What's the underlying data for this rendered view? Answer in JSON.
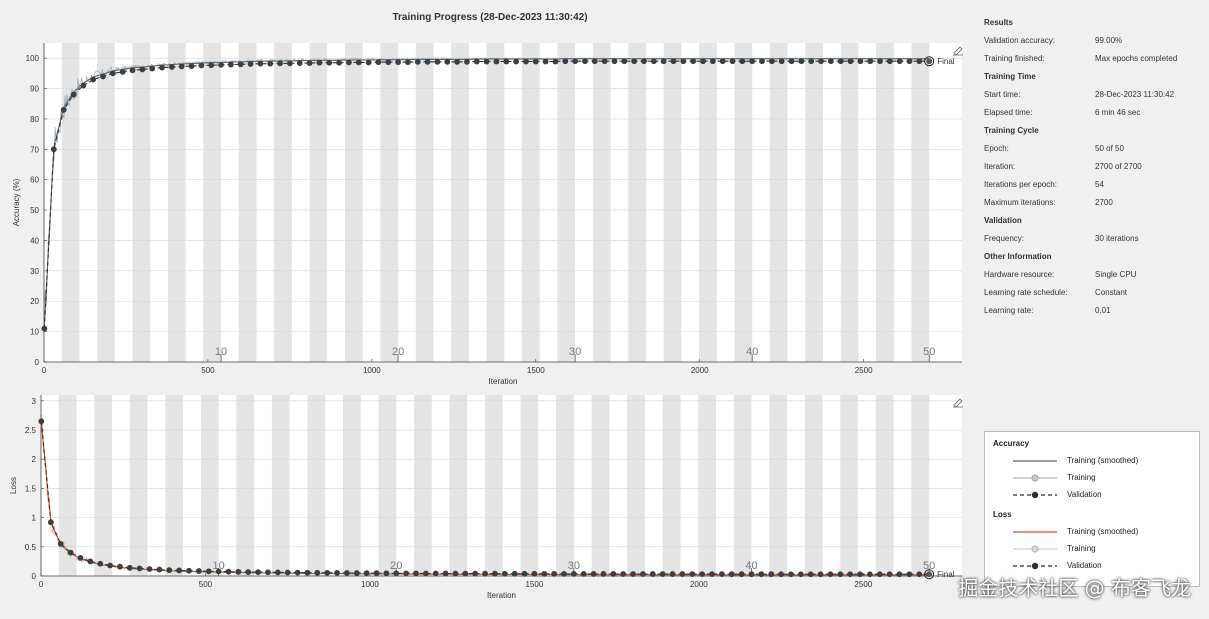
{
  "title": "Training Progress (28-Dec-2023 11:30:42)",
  "info": {
    "sections": [
      {
        "heading": "Results",
        "rows": [
          {
            "k": "Validation accuracy:",
            "v": "99.00%"
          },
          {
            "k": "Training finished:",
            "v": "Max epochs completed"
          }
        ]
      },
      {
        "heading": "Training Time",
        "rows": [
          {
            "k": "Start time:",
            "v": "28-Dec-2023 11:30:42"
          },
          {
            "k": "Elapsed time:",
            "v": "6 min 46 sec"
          }
        ]
      },
      {
        "heading": "Training Cycle",
        "rows": [
          {
            "k": "Epoch:",
            "v": "50 of 50"
          },
          {
            "k": "Iteration:",
            "v": "2700 of 2700"
          },
          {
            "k": "Iterations per epoch:",
            "v": "54"
          },
          {
            "k": "Maximum iterations:",
            "v": "2700"
          }
        ]
      },
      {
        "heading": "Validation",
        "rows": [
          {
            "k": "Frequency:",
            "v": "30 iterations"
          }
        ]
      },
      {
        "heading": "Other Information",
        "rows": [
          {
            "k": "Hardware resource:",
            "v": "Single CPU"
          },
          {
            "k": "Learning rate schedule:",
            "v": "Constant"
          },
          {
            "k": "Learning rate:",
            "v": "0.01"
          }
        ]
      }
    ]
  },
  "legend": {
    "accuracy_heading": "Accuracy",
    "loss_heading": "Loss",
    "acc_items": [
      "Training (smoothed)",
      "Training",
      "Validation"
    ],
    "loss_items": [
      "Training (smoothed)",
      "Training",
      "Validation"
    ]
  },
  "colors": {
    "acc_smoothed": "#5a6a78",
    "acc_training": "#9aa4ad",
    "validation": "#2f2f2f",
    "loss_smoothed": "#d9541e",
    "loss_training": "#f0a88a",
    "band": "#e4e4e4"
  },
  "watermark": "掘金技术社区 @ 布客飞龙",
  "chart_data": [
    {
      "type": "line",
      "xlabel": "Iteration",
      "ylabel": "Accuracy (%)",
      "xlim": [
        0,
        2800
      ],
      "ylim": [
        0,
        105
      ],
      "xticks": [
        0,
        500,
        1000,
        1500,
        2000,
        2500
      ],
      "yticks": [
        0,
        10,
        20,
        30,
        40,
        50,
        60,
        70,
        80,
        90,
        100
      ],
      "epoch_labels": [
        "10",
        "20",
        "30",
        "40",
        "50"
      ],
      "final_label": "Final",
      "final_value": 99.0,
      "iterations_per_epoch": 54,
      "total_iterations": 2700,
      "validation": {
        "x": [
          1,
          30,
          60,
          90,
          120,
          150,
          180,
          210,
          240,
          270,
          300,
          330,
          360,
          390,
          420,
          450,
          480,
          510,
          540,
          570,
          600,
          630,
          660,
          690,
          720,
          750,
          780,
          810,
          840,
          870,
          900,
          930,
          960,
          990,
          1020,
          1050,
          1080,
          1110,
          1140,
          1170,
          1200,
          1230,
          1260,
          1290,
          1320,
          1350,
          1380,
          1410,
          1440,
          1470,
          1500,
          1530,
          1560,
          1590,
          1620,
          1650,
          1680,
          1710,
          1740,
          1770,
          1800,
          1830,
          1860,
          1890,
          1920,
          1950,
          1980,
          2010,
          2040,
          2070,
          2100,
          2130,
          2160,
          2190,
          2220,
          2250,
          2280,
          2310,
          2340,
          2370,
          2400,
          2430,
          2460,
          2490,
          2520,
          2550,
          2580,
          2610,
          2640,
          2670,
          2700
        ],
        "y": [
          11,
          70,
          83,
          88,
          91,
          93,
          94,
          95,
          95.5,
          96,
          96.3,
          96.6,
          96.9,
          97.1,
          97.3,
          97.4,
          97.6,
          97.7,
          97.8,
          97.9,
          98,
          98.1,
          98.2,
          98.2,
          98.3,
          98.3,
          98.4,
          98.4,
          98.5,
          98.5,
          98.5,
          98.6,
          98.6,
          98.6,
          98.7,
          98.7,
          98.7,
          98.7,
          98.8,
          98.8,
          98.8,
          98.8,
          98.8,
          98.8,
          98.9,
          98.9,
          98.9,
          98.9,
          98.9,
          98.9,
          98.9,
          98.9,
          98.9,
          99,
          99,
          99,
          99,
          99,
          99,
          99,
          99,
          99,
          99,
          99,
          99,
          99,
          99,
          99,
          99,
          99,
          99,
          99,
          99,
          99,
          99,
          99,
          99,
          99,
          99,
          99,
          99,
          99,
          99,
          99,
          99,
          99,
          99,
          99,
          99,
          99,
          99
        ]
      }
    },
    {
      "type": "line",
      "xlabel": "Iteration",
      "ylabel": "Loss",
      "xlim": [
        0,
        2800
      ],
      "ylim": [
        0,
        3.1
      ],
      "xticks": [
        0,
        500,
        1000,
        1500,
        2000,
        2500
      ],
      "yticks": [
        0,
        0.5,
        1,
        1.5,
        2,
        2.5,
        3
      ],
      "epoch_labels": [
        "10",
        "20",
        "30",
        "40",
        "50"
      ],
      "final_label": "Final",
      "final_value": 0.03,
      "validation": {
        "x": [
          1,
          30,
          60,
          90,
          120,
          150,
          180,
          210,
          240,
          270,
          300,
          330,
          360,
          390,
          420,
          450,
          480,
          510,
          540,
          570,
          600,
          630,
          660,
          690,
          720,
          750,
          780,
          810,
          840,
          870,
          900,
          930,
          960,
          990,
          1020,
          1050,
          1080,
          1110,
          1140,
          1170,
          1200,
          1230,
          1260,
          1290,
          1320,
          1350,
          1380,
          1410,
          1440,
          1470,
          1500,
          1530,
          1560,
          1590,
          1620,
          1650,
          1680,
          1710,
          1740,
          1770,
          1800,
          1830,
          1860,
          1890,
          1920,
          1950,
          1980,
          2010,
          2040,
          2070,
          2100,
          2130,
          2160,
          2190,
          2220,
          2250,
          2280,
          2310,
          2340,
          2370,
          2400,
          2430,
          2460,
          2490,
          2520,
          2550,
          2580,
          2610,
          2640,
          2670,
          2700
        ],
        "y": [
          2.65,
          0.92,
          0.55,
          0.4,
          0.31,
          0.25,
          0.21,
          0.18,
          0.16,
          0.14,
          0.13,
          0.12,
          0.11,
          0.1,
          0.095,
          0.09,
          0.085,
          0.08,
          0.077,
          0.074,
          0.071,
          0.068,
          0.066,
          0.064,
          0.062,
          0.06,
          0.058,
          0.056,
          0.055,
          0.054,
          0.053,
          0.052,
          0.05,
          0.049,
          0.048,
          0.047,
          0.046,
          0.045,
          0.044,
          0.043,
          0.043,
          0.042,
          0.042,
          0.041,
          0.041,
          0.04,
          0.04,
          0.039,
          0.039,
          0.038,
          0.038,
          0.037,
          0.037,
          0.036,
          0.036,
          0.036,
          0.035,
          0.035,
          0.035,
          0.034,
          0.034,
          0.034,
          0.033,
          0.033,
          0.033,
          0.033,
          0.032,
          0.032,
          0.032,
          0.032,
          0.031,
          0.031,
          0.031,
          0.031,
          0.031,
          0.03,
          0.03,
          0.03,
          0.03,
          0.03,
          0.03,
          0.03,
          0.03,
          0.03,
          0.03,
          0.03,
          0.03,
          0.03,
          0.03,
          0.03,
          0.03
        ]
      }
    }
  ]
}
